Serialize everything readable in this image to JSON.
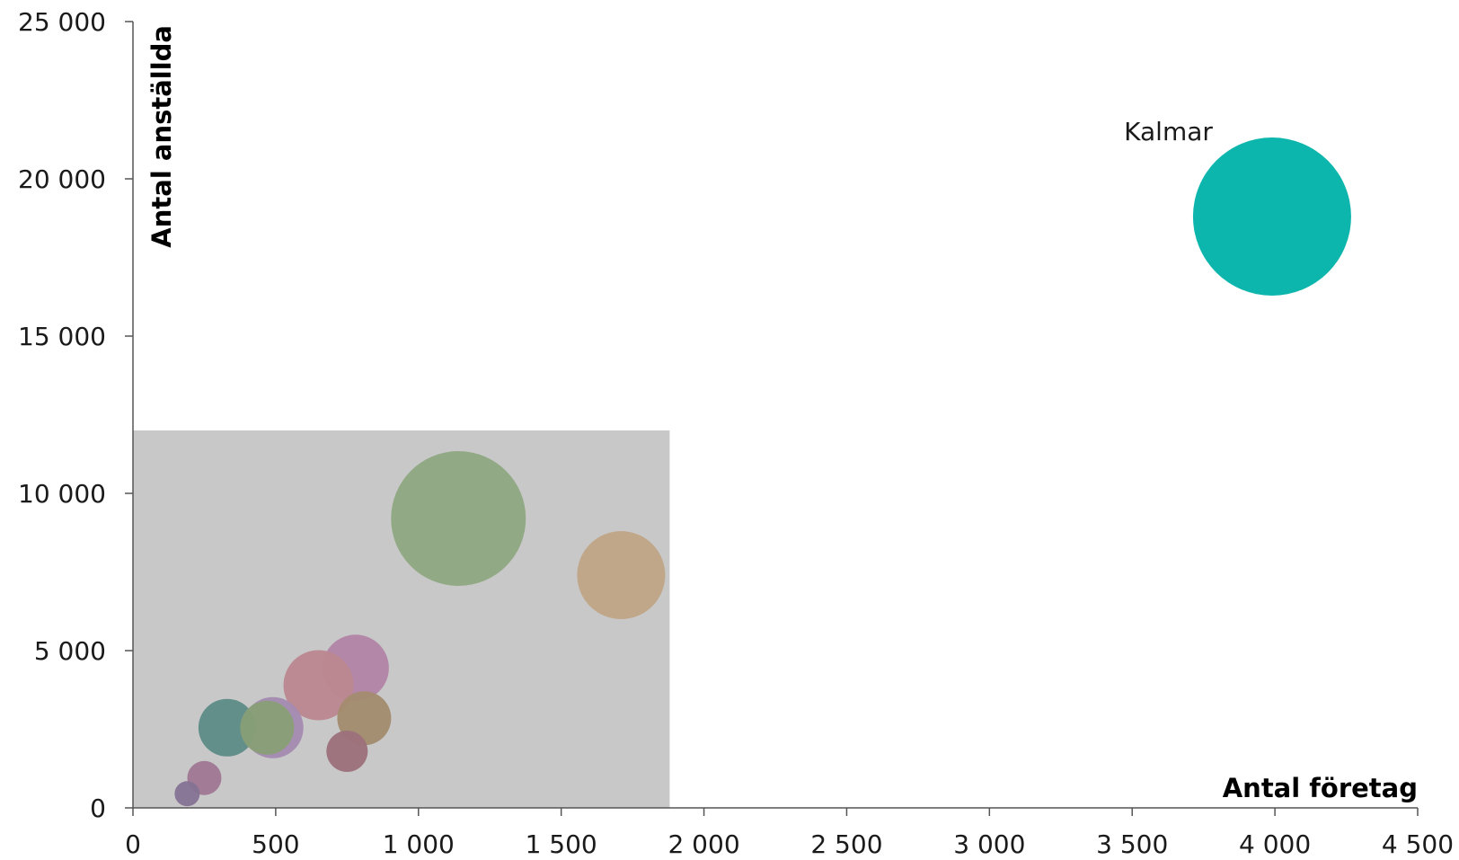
{
  "chart_data": {
    "type": "bubble",
    "xlabel": "Antal företag",
    "ylabel": "Antal anställda",
    "xlim": [
      0,
      4500
    ],
    "ylim": [
      0,
      25000
    ],
    "x_ticks": [
      0,
      500,
      1000,
      1500,
      2000,
      2500,
      3000,
      3500,
      4000,
      4500
    ],
    "y_ticks": [
      0,
      5000,
      10000,
      15000,
      20000,
      25000
    ],
    "x_tick_labels": [
      "0",
      "500",
      "1 000",
      "1 500",
      "2 000",
      "2 500",
      "3 000",
      "3 500",
      "4 000",
      "4 500"
    ],
    "y_tick_labels": [
      "0",
      "5 000",
      "10 000",
      "15 000",
      "20 000",
      "25 000"
    ],
    "grid": false,
    "highlight_region": {
      "x": [
        0,
        1880
      ],
      "y": [
        0,
        12000
      ],
      "color": "#c8c8c8"
    },
    "points": [
      {
        "x": 3990,
        "y": 18800,
        "size": 88,
        "color": "#00b2a9",
        "label": "Kalmar"
      },
      {
        "x": 1140,
        "y": 9200,
        "size": 75,
        "color": "#8fa882",
        "label": ""
      },
      {
        "x": 1710,
        "y": 7400,
        "size": 49,
        "color": "#c0a587",
        "label": ""
      },
      {
        "x": 780,
        "y": 4450,
        "size": 37,
        "color": "#b284a7",
        "label": ""
      },
      {
        "x": 650,
        "y": 3900,
        "size": 39,
        "color": "#bc878f",
        "label": ""
      },
      {
        "x": 810,
        "y": 2850,
        "size": 30,
        "color": "#a38c6f",
        "label": ""
      },
      {
        "x": 490,
        "y": 2550,
        "size": 34,
        "color": "#a48bb1",
        "label": ""
      },
      {
        "x": 330,
        "y": 2550,
        "size": 32,
        "color": "#5e8c88",
        "label": ""
      },
      {
        "x": 470,
        "y": 2550,
        "size": 30,
        "color": "#889f76",
        "label": ""
      },
      {
        "x": 750,
        "y": 1800,
        "size": 23,
        "color": "#9c717a",
        "label": ""
      },
      {
        "x": 250,
        "y": 950,
        "size": 19,
        "color": "#a07893",
        "label": ""
      },
      {
        "x": 190,
        "y": 450,
        "size": 14,
        "color": "#857393",
        "label": ""
      }
    ]
  }
}
